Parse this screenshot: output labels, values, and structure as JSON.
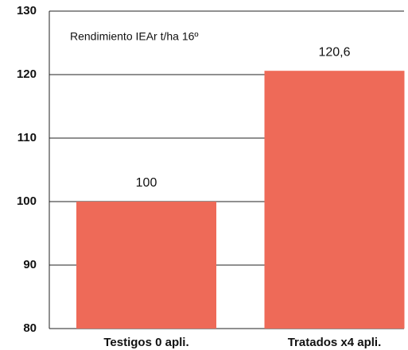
{
  "chart_data": {
    "type": "bar",
    "annotation": "Rendimiento IEAr t/ha 16º",
    "categories": [
      "Testigos 0 apli.",
      "Tratados x4 apli."
    ],
    "values": [
      100,
      120.6
    ],
    "value_labels": [
      "100",
      "120,6"
    ],
    "color": "#ee6a58",
    "ylim": [
      80,
      130
    ],
    "yticks": [
      80,
      90,
      100,
      110,
      120,
      130
    ],
    "grid": true
  }
}
